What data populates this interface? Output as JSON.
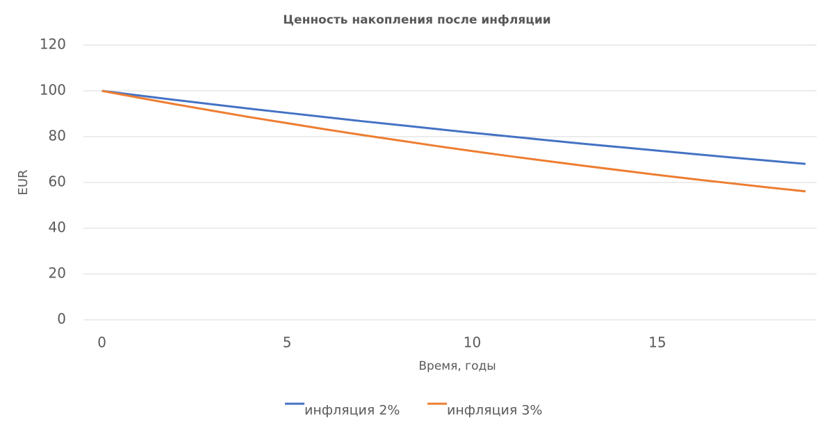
{
  "chart_data": {
    "type": "line",
    "title": "Ценность накопления после инфляции",
    "x_label": "Время, годы",
    "y_label": "EUR",
    "x": [
      0,
      1,
      2,
      3,
      4,
      5,
      6,
      7,
      8,
      9,
      10,
      11,
      12,
      13,
      14,
      15,
      16,
      17,
      18,
      19
    ],
    "series": [
      {
        "name": "инфляция 2%",
        "color": "#4472c4",
        "values": [
          100,
          98,
          96.0,
          94.1,
          92.2,
          90.4,
          88.6,
          86.8,
          85.1,
          83.4,
          81.7,
          80.1,
          78.5,
          76.9,
          75.4,
          73.9,
          72.4,
          70.9,
          69.5,
          68.1
        ]
      },
      {
        "name": "инфляция 3%",
        "color": "#ed7d31",
        "values": [
          100,
          97,
          94.1,
          91.3,
          88.5,
          85.9,
          83.3,
          80.8,
          78.4,
          76.0,
          73.7,
          71.5,
          69.4,
          67.3,
          65.3,
          63.3,
          61.4,
          59.6,
          57.8,
          56.1
        ]
      }
    ],
    "xlim": [
      -0.5,
      19.3
    ],
    "xticks": [
      0,
      5,
      10,
      15
    ],
    "ylim": [
      0,
      120
    ],
    "yticks": [
      0,
      20,
      40,
      60,
      80,
      100,
      120
    ],
    "grid": true,
    "legend": "bottom"
  }
}
